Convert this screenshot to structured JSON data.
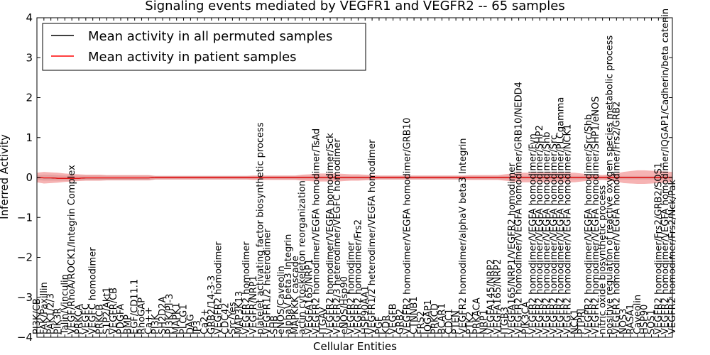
{
  "chart_data": {
    "type": "line",
    "title": "Signaling events mediated by VEGFR1 and VEGFR2 -- 65 samples",
    "xlabel": "Cellular Entities",
    "ylabel": "Inferred Activity",
    "ylim": [
      -4,
      4
    ],
    "yticks": [
      -4,
      -3,
      -2,
      -1,
      0,
      1,
      2,
      3,
      4
    ],
    "ytick_labels": [
      "−4",
      "−3",
      "−2",
      "−1",
      "0",
      "1",
      "2",
      "3",
      "4"
    ],
    "grid": false,
    "legend_position": "top-left",
    "categories": [
      "PI3K/CB",
      "FAK/Paxillin",
      "PAK1/2/3",
      "PIK3R",
      "Talin/Vinculin",
      "VEGF/RhoA/ROCK1/Integrin Complex",
      "PRKCA",
      "VEGFC",
      "VEGFC homodimer",
      "PRKCB",
      "S1P2/Akt1",
      "VEGFR/CB",
      "PDGFA",
      "BMP",
      "EGF/CD11.1",
      "RhoGAP",
      "Ca++",
      "PI3K",
      "SH2D2A",
      "PI3K/PI-3",
      "MAPK1",
      "PLCG1",
      "DAG",
      "IP3",
      "Ca2+",
      "GRB2/14-3-3",
      "VEGFR2 homodimer",
      "CDC42",
      "Src/Yes",
      "MAP3K13",
      "VEGFR2 homodimer",
      "VEGFR/NRP1",
      "platelet activating factor biosynthetic process",
      "VEGFR1/2 heterodimer",
      "SHB",
      "eNOS/Caveolin",
      "alphaV beta3 Integrin",
      "MAPKKK cascade",
      "actin cytoskeleton reorganization",
      "VEGFA165/NRP1",
      "VEGFR2 homodimer/VEGFA homodimer/TsAd",
      "ITGAV",
      "VEGFR2 homodimer/VEGFA homodimer/Sck",
      "VEGFR2/3 heterodimer/VEGFC homodimer",
      "eNOS/Hsp90",
      "VEGFR2 homodimer",
      "VEGFR2 homodimer/Frs2",
      "HSP90AA1",
      "VEGFR1/2 heterodimer/VEGFA homodimer",
      "PGF",
      "KDR",
      "VEGFB",
      "GRB2",
      "VEGFR2 homodimer/VEGFA homodimer/GRB10",
      "CTNNB1",
      "FRS2",
      "IQGAP1",
      "PRKCD",
      "BCAR1",
      "CDC1",
      "PTEN",
      "VEGFR2 homodimer/alphaV beta3 Integrin",
      "PTK2",
      "PRKACA",
      "NRP1",
      "VEGFA145/NRP2",
      "VEGFA165/NRP2",
      "ITGB3",
      "VEGFA165/NRP1/VEGFR2 homodimer",
      "VEGFR2 homodimer/VEGFA homodimer/GRB10/NEDD4",
      "PIK3CA",
      "VEGFR2 homodimer/VEGFA homodimer/Fyn",
      "VEGFR2 homodimer/VEGFA homodimer/SHP2",
      "VEGFR2 homodimer/VEGFA homodimer/Shb",
      "VEGFR2 homodimer/VEGFA homodimer/Src",
      "VEGFR2 homodimer/VEGFA homodimer/PLCgamma",
      "VEGFR2 homodimer/VEGFA homodimer/NCK1",
      "NCK1",
      "PTPRJ",
      "VEGFR2 homodimer/VEGFA homodimer/Src/Shb",
      "VEGFR2 homodimer/VEGFA homodimer/SHP1/eNOS",
      "nitric oxide biosynthetic process",
      "positive regulation of reactive oxygen species metabolic process",
      "VEGFR2 homodimer/VEGFA homodimer/Frs2/GRB2",
      "NOS3",
      "RASA1",
      "Caveolin",
      "HSP90",
      "SOS1",
      "VEGFR2 homodimer/Frs2/GRB2/SOS1",
      "VEGFR2 homodimer/VEGFA homodimer/IQGAP1/Cadherin/beta catenin",
      "VEGFR2 homodimer/Frs2/Nck/Pak"
    ],
    "series": [
      {
        "name": "Mean activity in all permuted samples",
        "color": "#000000",
        "values": [
          0,
          -0.01,
          -0.01,
          -0.02,
          -0.02,
          -0.02,
          -0.02,
          -0.01,
          -0.01,
          -0.01,
          -0.01,
          -0.01,
          -0.01,
          -0.01,
          -0.01,
          -0.01,
          -0.01,
          0,
          0,
          0,
          0,
          0,
          0,
          0,
          0,
          0,
          0,
          0,
          0,
          0,
          0,
          0,
          0,
          0,
          0,
          0,
          0,
          0,
          0,
          0,
          0,
          0,
          0,
          0,
          0,
          0,
          0,
          0,
          0,
          0,
          0,
          0,
          0,
          0,
          0,
          0,
          0,
          0,
          0,
          0,
          0,
          0,
          0,
          0,
          0,
          0,
          0,
          0,
          0,
          0,
          0,
          0,
          0,
          0,
          0,
          0,
          0,
          0,
          0,
          0,
          0,
          0,
          0,
          0,
          0,
          0,
          0,
          0,
          0,
          0,
          0,
          0
        ]
      },
      {
        "name": "Mean activity in patient samples",
        "color": "#ff0000",
        "values": [
          0,
          -0.01,
          -0.01,
          -0.02,
          -0.02,
          -0.02,
          -0.02,
          -0.01,
          -0.01,
          -0.01,
          -0.01,
          -0.01,
          -0.01,
          -0.01,
          -0.01,
          -0.01,
          -0.01,
          0,
          0,
          0,
          0,
          0,
          0,
          0,
          0,
          0,
          0,
          0,
          0,
          0,
          0,
          0,
          0,
          0,
          0,
          0,
          0,
          0,
          0,
          0,
          0,
          0,
          0,
          0,
          0,
          0,
          0,
          0,
          0,
          0,
          0,
          0,
          0,
          0,
          0,
          0,
          0,
          0,
          0,
          0,
          0,
          0,
          0,
          0,
          0,
          0,
          0,
          0,
          0,
          0,
          0,
          0,
          0,
          0,
          0,
          0,
          0,
          0,
          0,
          0,
          0,
          0,
          0,
          0,
          0,
          0,
          0,
          0,
          0,
          0,
          0,
          0
        ]
      }
    ],
    "bands": [
      {
        "name": "permuted spread",
        "color": "#b0b0b0",
        "upper": [
          0.06,
          0.07,
          0.07,
          0.06,
          0.05,
          0.05,
          0.05,
          0.05,
          0.05,
          0.05,
          0.05,
          0.05,
          0.05,
          0.05,
          0.05,
          0.05,
          0.05,
          0.04,
          0.04,
          0.04,
          0.04,
          0.04,
          0.04,
          0.04,
          0.04,
          0.04,
          0.04,
          0.04,
          0.04,
          0.04,
          0.04,
          0.04,
          0.04,
          0.04,
          0.04,
          0.04,
          0.04,
          0.04,
          0.04,
          0.04,
          0.04,
          0.04,
          0.04,
          0.04,
          0.04,
          0.04,
          0.04,
          0.04,
          0.04,
          0.04,
          0.04,
          0.04,
          0.04,
          0.04,
          0.04,
          0.04,
          0.04,
          0.04,
          0.04,
          0.04,
          0.04,
          0.04,
          0.04,
          0.04,
          0.04,
          0.04,
          0.04,
          0.04,
          0.04,
          0.04,
          0.04,
          0.04,
          0.04,
          0.04,
          0.04,
          0.04,
          0.04,
          0.04,
          0.04,
          0.04,
          0.04,
          0.04,
          0.04,
          0.04,
          0.04,
          0.04,
          0.04,
          0.04,
          0.04,
          0.04,
          0.04,
          0.04
        ],
        "lower": [
          -0.06,
          -0.08,
          -0.08,
          -0.08,
          -0.08,
          -0.08,
          -0.07,
          -0.07,
          -0.07,
          -0.07,
          -0.07,
          -0.07,
          -0.07,
          -0.07,
          -0.07,
          -0.07,
          -0.07,
          -0.05,
          -0.05,
          -0.05,
          -0.05,
          -0.05,
          -0.05,
          -0.05,
          -0.05,
          -0.05,
          -0.05,
          -0.05,
          -0.05,
          -0.05,
          -0.05,
          -0.05,
          -0.05,
          -0.05,
          -0.05,
          -0.05,
          -0.05,
          -0.05,
          -0.05,
          -0.05,
          -0.05,
          -0.05,
          -0.05,
          -0.05,
          -0.05,
          -0.05,
          -0.05,
          -0.05,
          -0.05,
          -0.05,
          -0.05,
          -0.05,
          -0.05,
          -0.05,
          -0.05,
          -0.05,
          -0.05,
          -0.05,
          -0.05,
          -0.05,
          -0.05,
          -0.05,
          -0.05,
          -0.05,
          -0.05,
          -0.05,
          -0.05,
          -0.05,
          -0.05,
          -0.05,
          -0.05,
          -0.05,
          -0.05,
          -0.05,
          -0.05,
          -0.05,
          -0.05,
          -0.05,
          -0.05,
          -0.05,
          -0.05,
          -0.05,
          -0.05,
          -0.05,
          -0.05,
          -0.05,
          -0.05,
          -0.05,
          -0.05,
          -0.05,
          -0.05,
          -0.05
        ]
      },
      {
        "name": "patient spread",
        "color": "#f08080",
        "upper": [
          0.12,
          0.14,
          0.13,
          0.12,
          0.1,
          0.09,
          0.08,
          0.07,
          0.07,
          0.07,
          0.06,
          0.06,
          0.06,
          0.06,
          0.06,
          0.06,
          0.06,
          0.04,
          0.04,
          0.04,
          0.04,
          0.04,
          0.04,
          0.04,
          0.04,
          0.04,
          0.04,
          0.04,
          0.04,
          0.04,
          0.04,
          0.05,
          0.05,
          0.05,
          0.05,
          0.05,
          0.05,
          0.05,
          0.07,
          0.08,
          0.1,
          0.1,
          0.1,
          0.1,
          0.09,
          0.08,
          0.08,
          0.07,
          0.06,
          0.05,
          0.05,
          0.05,
          0.05,
          0.05,
          0.05,
          0.05,
          0.05,
          0.05,
          0.05,
          0.05,
          0.05,
          0.05,
          0.06,
          0.06,
          0.06,
          0.06,
          0.06,
          0.08,
          0.1,
          0.12,
          0.12,
          0.12,
          0.12,
          0.12,
          0.12,
          0.12,
          0.12,
          0.12,
          0.1,
          0.08,
          0.07,
          0.06,
          0.08,
          0.1,
          0.14,
          0.16,
          0.18,
          0.18,
          0.17,
          0.16,
          0.15,
          0.14
        ],
        "lower": [
          -0.12,
          -0.15,
          -0.14,
          -0.13,
          -0.11,
          -0.1,
          -0.09,
          -0.08,
          -0.08,
          -0.08,
          -0.07,
          -0.07,
          -0.07,
          -0.07,
          -0.07,
          -0.07,
          -0.07,
          -0.05,
          -0.05,
          -0.05,
          -0.05,
          -0.05,
          -0.05,
          -0.05,
          -0.05,
          -0.05,
          -0.05,
          -0.05,
          -0.05,
          -0.05,
          -0.05,
          -0.06,
          -0.06,
          -0.06,
          -0.06,
          -0.06,
          -0.06,
          -0.06,
          -0.08,
          -0.09,
          -0.1,
          -0.1,
          -0.1,
          -0.1,
          -0.09,
          -0.08,
          -0.08,
          -0.07,
          -0.06,
          -0.05,
          -0.05,
          -0.05,
          -0.05,
          -0.05,
          -0.05,
          -0.05,
          -0.05,
          -0.05,
          -0.05,
          -0.05,
          -0.05,
          -0.05,
          -0.06,
          -0.06,
          -0.06,
          -0.06,
          -0.06,
          -0.08,
          -0.1,
          -0.12,
          -0.12,
          -0.12,
          -0.12,
          -0.12,
          -0.12,
          -0.12,
          -0.12,
          -0.12,
          -0.1,
          -0.08,
          -0.07,
          -0.06,
          -0.08,
          -0.1,
          -0.14,
          -0.15,
          -0.16,
          -0.16,
          -0.15,
          -0.14,
          -0.13,
          -0.12
        ]
      }
    ]
  }
}
